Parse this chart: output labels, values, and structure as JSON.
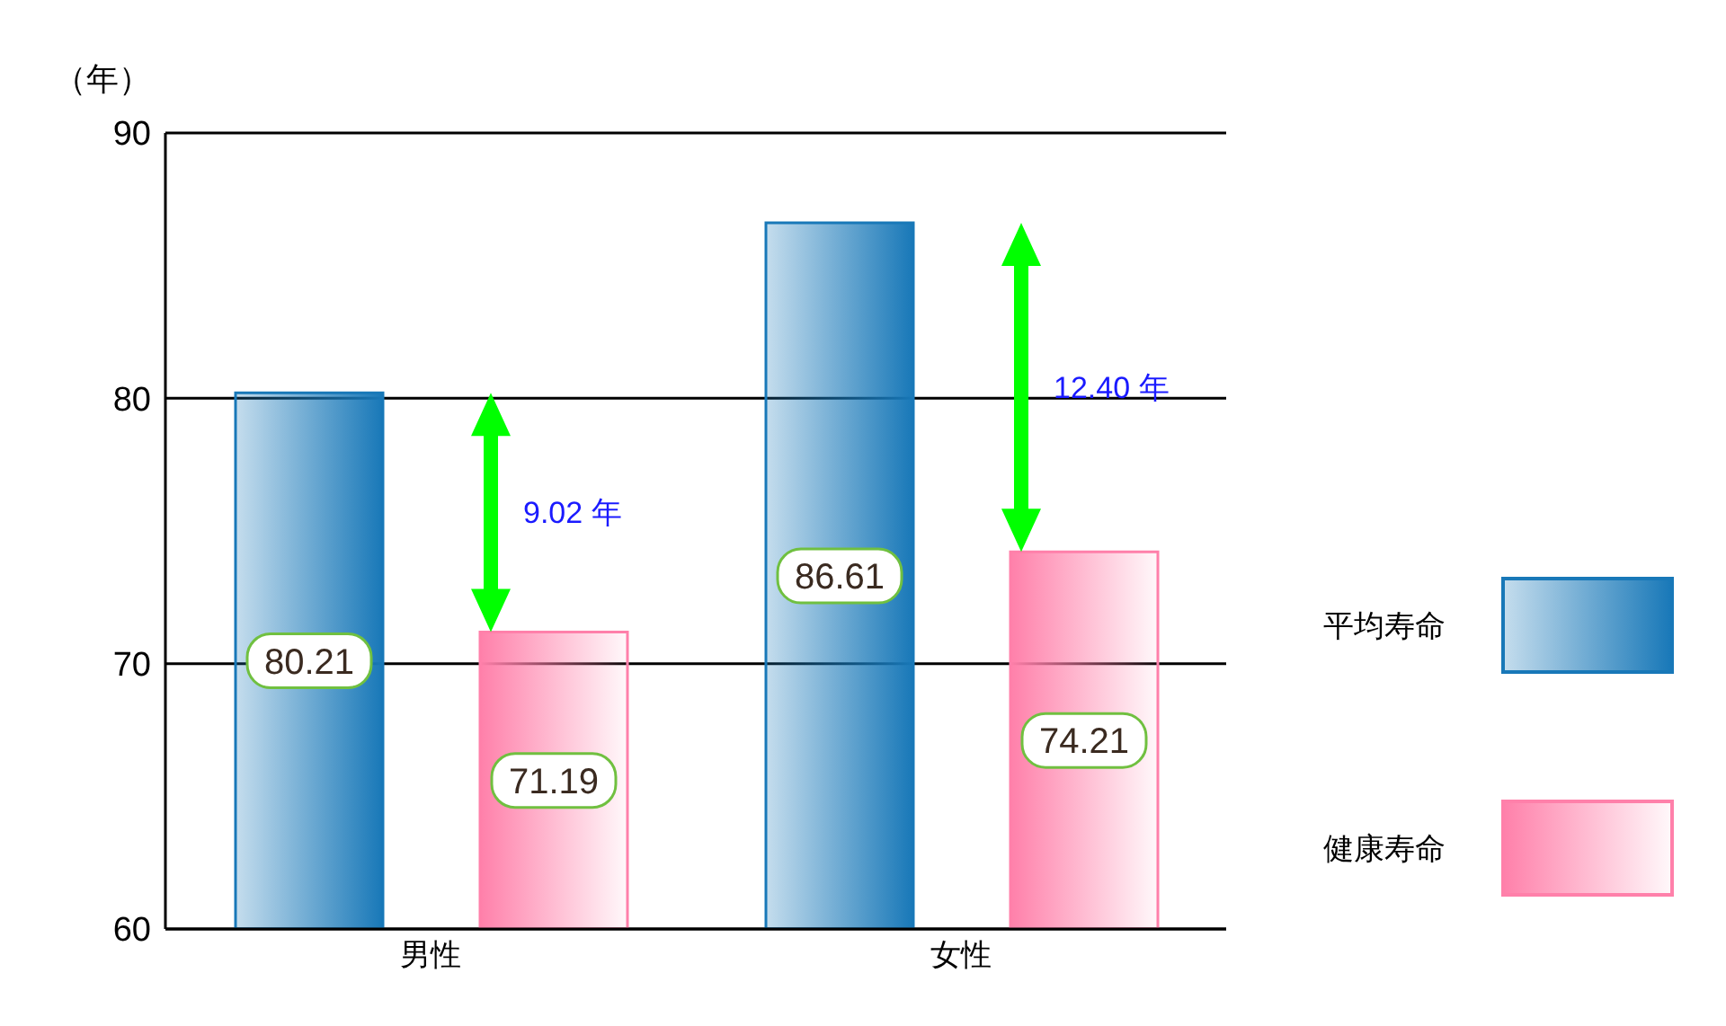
{
  "chart_data": {
    "type": "bar",
    "ylabel": "（年）",
    "categories": [
      "男性",
      "女性"
    ],
    "series": [
      {
        "name": "平均寿命",
        "color": "#1878b8",
        "values": [
          80.21,
          86.61
        ]
      },
      {
        "name": "健康寿命",
        "color": "#ff80aa",
        "values": [
          71.19,
          74.21
        ]
      }
    ],
    "ylim": [
      60,
      90
    ],
    "yticks": [
      60,
      70,
      80,
      90
    ],
    "grid": "y",
    "legend": "right",
    "data_labels": true,
    "annotations": [
      "9.02 年",
      "12.40 年"
    ]
  }
}
